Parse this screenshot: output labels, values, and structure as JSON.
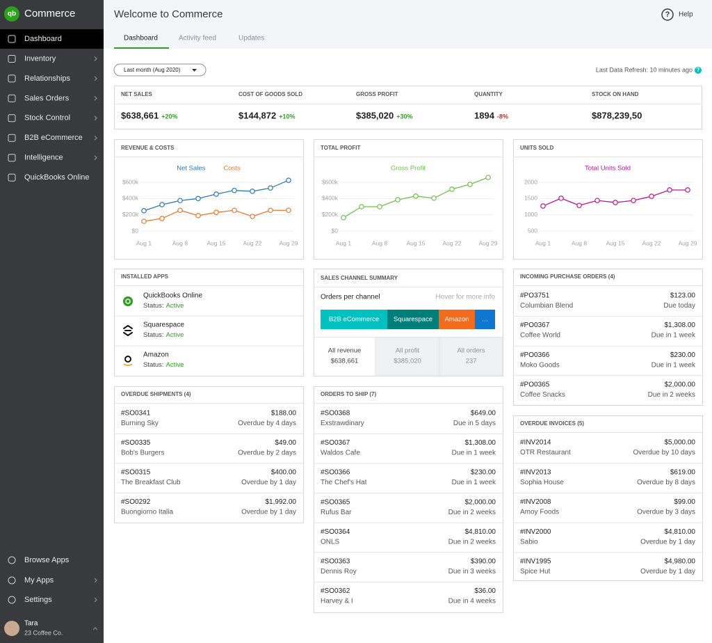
{
  "app": {
    "name": "Commerce",
    "logo": "qb"
  },
  "sidebar": {
    "nav": [
      "Dashboard",
      "Inventory",
      "Relationships",
      "Sales Orders",
      "Stock Control",
      "B2B eCommerce",
      "Intelligence",
      "QuickBooks Online"
    ],
    "bottom": [
      "Browse Apps",
      "My Apps",
      "Settings"
    ],
    "user": {
      "name": "Tara",
      "company": "23 Coffee Co."
    }
  },
  "header": {
    "title": "Welcome to Commerce",
    "help_icon": "?",
    "help": "Help",
    "tabs": [
      "Dashboard",
      "Activity feed",
      "Updates"
    ]
  },
  "toolbar": {
    "period": "Last month (Aug 2020)",
    "refresh": "Last Data Refresh: 10 minutes ago",
    "refresh_icon": "?"
  },
  "kpis": [
    {
      "label": "NET SALES",
      "value": "$638,661",
      "change": "+20%"
    },
    {
      "label": "COST OF GOODS SOLD",
      "value": "$144,872",
      "change": "+10%"
    },
    {
      "label": "GROSS PROFIT",
      "value": "$385,020",
      "change": "+30%"
    },
    {
      "label": "QUANTITY",
      "value": "1894",
      "change": "-8%"
    },
    {
      "label": "STOCK ON HAND",
      "value": "$878,239,50"
    }
  ],
  "chart_data": [
    {
      "type": "line",
      "title": "REVENUE & COSTS",
      "categories": [
        "Aug 1",
        null,
        "Aug 8",
        null,
        "Aug 15",
        null,
        "Aug 22",
        null,
        "Aug 29"
      ],
      "series": [
        {
          "name": "Net Sales",
          "color": "#2b7bb9",
          "values": [
            250000,
            325000,
            375000,
            400000,
            455000,
            500000,
            490000,
            530000,
            625000
          ]
        },
        {
          "name": "Costs",
          "color": "#e8772e",
          "values": [
            120000,
            155000,
            255000,
            190000,
            230000,
            255000,
            180000,
            255000,
            255000
          ]
        }
      ],
      "ylim": [
        0,
        600000
      ],
      "yticks": [
        {
          "value": 0,
          "label": "$0"
        },
        {
          "value": 200000,
          "label": "$200k"
        },
        {
          "value": 400000,
          "label": "$400k"
        },
        {
          "value": 600000,
          "label": "$600k"
        }
      ],
      "grid": true
    },
    {
      "type": "line",
      "title": "TOTAL PROFIT",
      "categories": [
        "Aug 1",
        null,
        "Aug 8",
        null,
        "Aug 15",
        null,
        "Aug 22",
        null,
        "Aug 29"
      ],
      "series": [
        {
          "name": "Gross Profit",
          "color": "#6cc24a",
          "values": [
            165000,
            300000,
            300000,
            385000,
            430000,
            405000,
            515000,
            575000,
            660000
          ]
        }
      ],
      "ylim": [
        0,
        600000
      ],
      "yticks": [
        {
          "value": 0,
          "label": "$0"
        },
        {
          "value": 200000,
          "label": "$200k"
        },
        {
          "value": 400000,
          "label": "$400k"
        },
        {
          "value": 600000,
          "label": "$600k"
        }
      ],
      "grid": true
    },
    {
      "type": "line",
      "title": "UNITS SOLD",
      "categories": [
        "Aug 1",
        null,
        "Aug 8",
        null,
        "Aug 15",
        null,
        "Aug 22",
        null,
        "Aug 29"
      ],
      "series": [
        {
          "name": "Total Units Sold",
          "color": "#c0168f",
          "values": [
            1270,
            1510,
            1290,
            1440,
            1380,
            1440,
            1570,
            1765,
            1765
          ]
        }
      ],
      "ylim": [
        500,
        2000
      ],
      "yticks": [
        500,
        1000,
        1500,
        2000
      ],
      "grid": true
    }
  ],
  "installed_apps": {
    "title": "INSTALLED APPS",
    "items": [
      {
        "name": "QuickBooks Online",
        "status_label": "Status:",
        "status": "Active"
      },
      {
        "name": "Squarespace",
        "status_label": "Status:",
        "status": "Active"
      },
      {
        "name": "Amazon",
        "status_label": "Status:",
        "status": "Active"
      }
    ]
  },
  "sales_channel": {
    "title": "SALES CHANNEL SUMMARY",
    "subtitle": "Orders per channel",
    "hint": "Hover for more info",
    "channels": [
      {
        "name": "B2B eCommerce",
        "color": "#00c1bf"
      },
      {
        "name": "Squarespace",
        "color": "#007e7a"
      },
      {
        "name": "Amazon",
        "color": "#f26a1b"
      },
      {
        "name": "…",
        "color": "#0d77d1"
      }
    ],
    "totals": [
      {
        "label": "All revenue",
        "value": "$638,661"
      },
      {
        "label": "All profit",
        "value": "$385,020"
      },
      {
        "label": "All orders",
        "value": "237"
      }
    ]
  },
  "incoming_purchase_orders": {
    "title": "INCOMING PURCHASE ORDERS (4)",
    "items": [
      {
        "id": "#PO3751",
        "amount": "$123.00",
        "name": "Columbian Blend",
        "status": "Due today"
      },
      {
        "id": "#PO0367",
        "amount": "$1,308.00",
        "name": "Coffee World",
        "status": "Due in 1 week"
      },
      {
        "id": "#PO0366",
        "amount": "$230.00",
        "name": "Moko Goods",
        "status": "Due in 1 week"
      },
      {
        "id": "#PO0365",
        "amount": "$2,000.00",
        "name": "Coffee Snacks",
        "status": "Due in 2 weeks"
      }
    ]
  },
  "overdue_shipments": {
    "title": "OVERDUE SHIPMENTS (4)",
    "items": [
      {
        "id": "#SO0341",
        "amount": "$188.00",
        "name": "Burning Sky",
        "status": "Overdue by 4 days"
      },
      {
        "id": "#SO0335",
        "amount": "$49.00",
        "name": "Bob's Burgers",
        "status": "Overdue by 2 days"
      },
      {
        "id": "#SO0315",
        "amount": "$400.00",
        "name": "The Breakfast Club",
        "status": "Overdue by 1 day"
      },
      {
        "id": "#SO0292",
        "amount": "$1,992.00",
        "name": "Buongiorno Italia",
        "status": "Overdue by 1 day"
      }
    ]
  },
  "orders_to_ship": {
    "title": "ORDERS TO SHIP (7)",
    "items": [
      {
        "id": "#SO0368",
        "amount": "$649.00",
        "name": "Exstrawdinary",
        "status": "Due in 5 days"
      },
      {
        "id": "#SO0367",
        "amount": "$1,308.00",
        "name": "Waldos Cafe",
        "status": "Due in 1 week"
      },
      {
        "id": "#SO0366",
        "amount": "$230.00",
        "name": "The Chef's Hat",
        "status": "Due in 1 week"
      },
      {
        "id": "#SO0365",
        "amount": "$2,000.00",
        "name": "Rufus Bar",
        "status": "Due in 2 weeks"
      },
      {
        "id": "#SO0364",
        "amount": "$4,810.00",
        "name": "ONLS",
        "status": "Due in 2 weeks"
      },
      {
        "id": "#SO0363",
        "amount": "$390.00",
        "name": "Dennis Roy",
        "status": "Due in 3 weeks"
      },
      {
        "id": "#SO0362",
        "amount": "$36.00",
        "name": "Harvey & I",
        "status": "Due in 4 weeks"
      }
    ]
  },
  "overdue_invoices": {
    "title": "OVERDUE INVOICES (5)",
    "items": [
      {
        "id": "#INV2014",
        "amount": "$5,000.00",
        "name": "OTR Restaurant",
        "status": "Overdue by 10 days"
      },
      {
        "id": "#INV2013",
        "amount": "$619.00",
        "name": "Sophia House",
        "status": "Overdue by 8 days"
      },
      {
        "id": "#INV2008",
        "amount": "$99.00",
        "name": "Amoy Foods",
        "status": "Overdue by 3 days"
      },
      {
        "id": "#INV2000",
        "amount": "$4,810.00",
        "name": "Sabio",
        "status": "Overdue by 1 day"
      },
      {
        "id": "#INV1995",
        "amount": "$4,980.00",
        "name": "Spice Hut",
        "status": "Overdue by 1 day"
      }
    ]
  }
}
